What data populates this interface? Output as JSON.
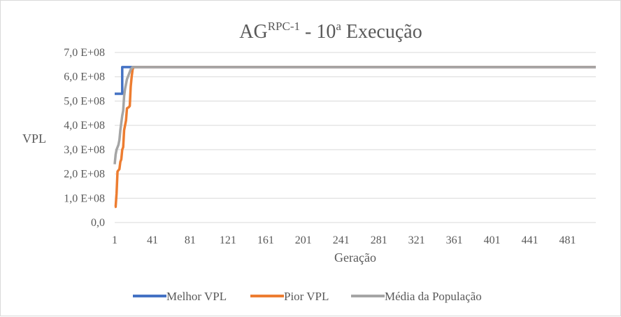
{
  "chart_data": {
    "type": "line",
    "title": {
      "base": "AG",
      "superscript": "RPC-1",
      "rest": " - 10",
      "rest_superscript": "a",
      "tail": " Execução"
    },
    "xlabel": "Geração",
    "ylabel": "VPL",
    "xlim": [
      1,
      511
    ],
    "ylim": [
      0,
      700000000
    ],
    "x_ticks": [
      1,
      41,
      81,
      121,
      161,
      201,
      241,
      281,
      321,
      361,
      401,
      441,
      481
    ],
    "y_ticks": [
      {
        "value": 0,
        "label": "0,0"
      },
      {
        "value": 100000000,
        "label": "1,0 E+08"
      },
      {
        "value": 200000000,
        "label": "2,0 E+08"
      },
      {
        "value": 300000000,
        "label": "3,0 E+08"
      },
      {
        "value": 400000000,
        "label": "4,0 E+08"
      },
      {
        "value": 500000000,
        "label": "5,0 E+08"
      },
      {
        "value": 600000000,
        "label": "6,0 E+08"
      },
      {
        "value": 700000000,
        "label": "7,0 E+08"
      }
    ],
    "grid": true,
    "legend_position": "bottom",
    "series": [
      {
        "name": "Melhor VPL",
        "color": "#4472c4",
        "points": [
          [
            1,
            530000000
          ],
          [
            9,
            530000000
          ],
          [
            9,
            640000000
          ],
          [
            511,
            640000000
          ]
        ]
      },
      {
        "name": "Pior VPL",
        "color": "#ed7d31",
        "points": [
          [
            1,
            65000000
          ],
          [
            2,
            65000000
          ],
          [
            3,
            120000000
          ],
          [
            4,
            210000000
          ],
          [
            5,
            215000000
          ],
          [
            6,
            220000000
          ],
          [
            7,
            250000000
          ],
          [
            8,
            260000000
          ],
          [
            9,
            300000000
          ],
          [
            10,
            310000000
          ],
          [
            11,
            380000000
          ],
          [
            12,
            400000000
          ],
          [
            13,
            420000000
          ],
          [
            14,
            470000000
          ],
          [
            16,
            475000000
          ],
          [
            17,
            480000000
          ],
          [
            18,
            560000000
          ],
          [
            19,
            600000000
          ],
          [
            20,
            630000000
          ],
          [
            21,
            640000000
          ],
          [
            511,
            640000000
          ]
        ]
      },
      {
        "name": "Média da População",
        "color": "#a5a5a5",
        "points": [
          [
            1,
            240000000
          ],
          [
            2,
            280000000
          ],
          [
            3,
            300000000
          ],
          [
            4,
            310000000
          ],
          [
            5,
            320000000
          ],
          [
            6,
            340000000
          ],
          [
            7,
            380000000
          ],
          [
            8,
            410000000
          ],
          [
            9,
            440000000
          ],
          [
            10,
            460000000
          ],
          [
            11,
            520000000
          ],
          [
            12,
            550000000
          ],
          [
            13,
            570000000
          ],
          [
            14,
            590000000
          ],
          [
            16,
            610000000
          ],
          [
            18,
            630000000
          ],
          [
            20,
            640000000
          ],
          [
            511,
            640000000
          ]
        ]
      }
    ]
  }
}
